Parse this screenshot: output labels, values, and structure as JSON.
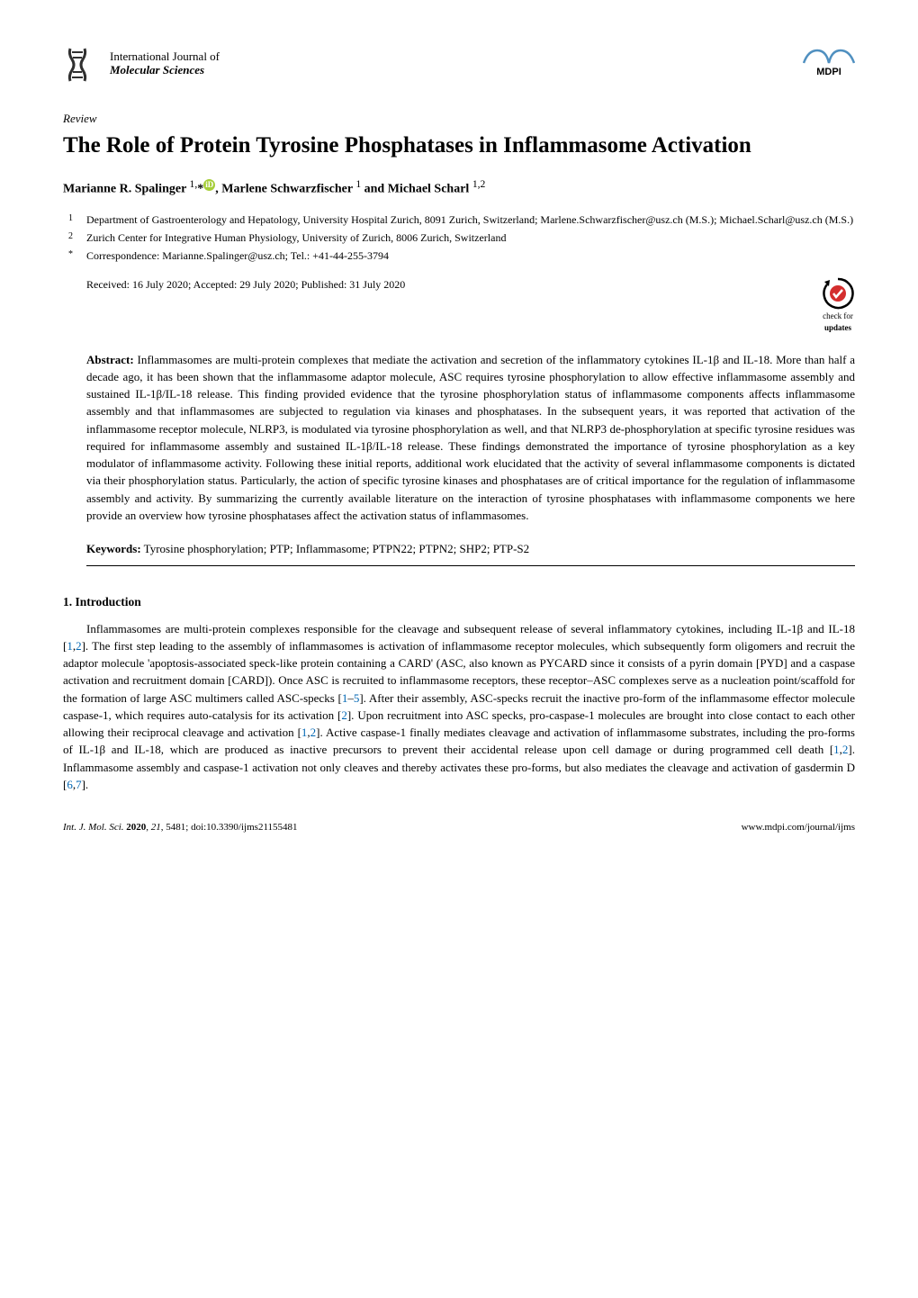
{
  "journal": {
    "line1": "International Journal of",
    "line2": "Molecular Sciences"
  },
  "publisher": "MDPI",
  "article_type": "Review",
  "title": "The Role of Protein Tyrosine Phosphatases in Inflammasome Activation",
  "authors_html": "Marianne R. Spalinger <sup class=\"author-sup\">1,</sup>*<span class=\"orcid-icon\" data-name=\"orcid-icon\" data-interactable=\"false\">iD</span>, Marlene Schwarzfischer <sup class=\"author-sup\">1</sup> and Michael Scharl <sup class=\"author-sup\">1,2</sup>",
  "affiliations": [
    {
      "marker": "1",
      "text": "Department of Gastroenterology and Hepatology, University Hospital Zurich, 8091 Zurich, Switzerland; Marlene.Schwarzfischer@usz.ch (M.S.); Michael.Scharl@usz.ch (M.S.)"
    },
    {
      "marker": "2",
      "text": "Zurich Center for Integrative Human Physiology, University of Zurich, 8006 Zurich, Switzerland"
    },
    {
      "marker": "*",
      "text": "Correspondence: Marianne.Spalinger@usz.ch; Tel.: +41-44-255-3794"
    }
  ],
  "dates_text": "Received: 16 July 2020; Accepted: 29 July 2020; Published: 31 July 2020",
  "check_updates": {
    "line1": "check for",
    "line2": "updates"
  },
  "abstract_label": "Abstract:",
  "abstract_text": " Inflammasomes are multi-protein complexes that mediate the activation and secretion of the inflammatory cytokines IL-1β and IL-18. More than half a decade ago, it has been shown that the inflammasome adaptor molecule, ASC requires tyrosine phosphorylation to allow effective inflammasome assembly and sustained IL-1β/IL-18 release. This finding provided evidence that the tyrosine phosphorylation status of inflammasome components affects inflammasome assembly and that inflammasomes are subjected to regulation via kinases and phosphatases. In the subsequent years, it was reported that activation of the inflammasome receptor molecule, NLRP3, is modulated via tyrosine phosphorylation as well, and that NLRP3 de-phosphorylation at specific tyrosine residues was required for inflammasome assembly and sustained IL-1β/IL-18 release. These findings demonstrated the importance of tyrosine phosphorylation as a key modulator of inflammasome activity. Following these initial reports, additional work elucidated that the activity of several inflammasome components is dictated via their phosphorylation status. Particularly, the action of specific tyrosine kinases and phosphatases are of critical importance for the regulation of inflammasome assembly and activity. By summarizing the currently available literature on the interaction of tyrosine phosphatases with inflammasome components we here provide an overview how tyrosine phosphatases affect the activation status of inflammasomes.",
  "keywords_label": "Keywords:",
  "keywords_text": " Tyrosine phosphorylation; PTP; Inflammasome; PTPN22; PTPN2; SHP2; PTP-S2",
  "section1_heading": "1. Introduction",
  "body_html": "Inflammasomes are multi-protein complexes responsible for the cleavage and subsequent release of several inflammatory cytokines, including IL-1β and IL-18 [<span class=\"ref-link\">1</span>,<span class=\"ref-link\">2</span>]. The first step leading to the assembly of inflammasomes is activation of inflammasome receptor molecules, which subsequently form oligomers and recruit the adaptor molecule 'apoptosis-associated speck-like protein containing a CARD' (ASC, also known as PYCARD since it consists of a pyrin domain [PYD] and a caspase activation and recruitment domain [CARD]). Once ASC is recruited to inflammasome receptors, these receptor–ASC complexes serve as a nucleation point/scaffold for the formation of large ASC multimers called ASC-specks [<span class=\"ref-link\">1</span>–<span class=\"ref-link\">5</span>]. After their assembly, ASC-specks recruit the inactive pro-form of the inflammasome effector molecule caspase-1, which requires auto-catalysis for its activation [<span class=\"ref-link\">2</span>]. Upon recruitment into ASC specks, pro-caspase-1 molecules are brought into close contact to each other allowing their reciprocal cleavage and activation [<span class=\"ref-link\">1</span>,<span class=\"ref-link\">2</span>]. Active caspase-1 finally mediates cleavage and activation of inflammasome substrates, including the pro-forms of IL-1β and IL-18, which are produced as inactive precursors to prevent their accidental release upon cell damage or during programmed cell death [<span class=\"ref-link\">1</span>,<span class=\"ref-link\">2</span>]. Inflammasome assembly and caspase-1 activation not only cleaves and thereby activates these pro-forms, but also mediates the cleavage and activation of gasdermin D [<span class=\"ref-link\">6</span>,<span class=\"ref-link\">7</span>].",
  "footer": {
    "left": "Int. J. Mol. Sci. 2020, 21, 5481; doi:10.3390/ijms21155481",
    "right": "www.mdpi.com/journal/ijms"
  },
  "colors": {
    "ref_link": "#0066b3",
    "orcid": "#a6ce39",
    "mdpi_border": "#5090c0",
    "logo_dark": "#303030"
  }
}
